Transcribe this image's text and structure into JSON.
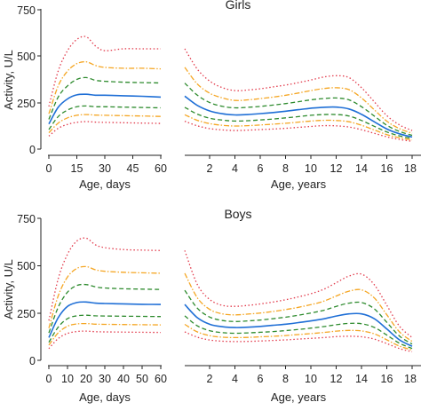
{
  "chart_data": [
    {
      "type": "line",
      "title": "Girls",
      "ylabel": "Activity, U/L",
      "ylim": [
        0,
        750
      ],
      "yticks": [
        "0",
        "250",
        "500",
        "750"
      ],
      "ytick_values": [
        0,
        250,
        500,
        750
      ],
      "grid": false,
      "panels": [
        {
          "xlabel": "Age, days",
          "xlim": [
            0,
            60
          ],
          "xticks": [
            "0",
            "15",
            "30",
            "45",
            "60"
          ],
          "xtick_values": [
            0,
            15,
            30,
            45,
            60
          ],
          "x": [
            0,
            5,
            10,
            15,
            20,
            25,
            30,
            40,
            50,
            60
          ],
          "series": [
            {
              "color": "#e23a4b",
              "dash": "dotted",
              "values": [
                230,
                420,
                530,
                590,
                605,
                555,
                530,
                540,
                540,
                540
              ]
            },
            {
              "color": "#f5a623",
              "dash": "dashdot",
              "values": [
                190,
                340,
                420,
                460,
                470,
                450,
                440,
                435,
                435,
                432
              ]
            },
            {
              "color": "#2e8b2e",
              "dash": "dashed",
              "values": [
                160,
                280,
                340,
                375,
                385,
                370,
                365,
                360,
                358,
                356
              ]
            },
            {
              "color": "#1f6fd6",
              "dash": "solid",
              "values": [
                135,
                225,
                270,
                292,
                295,
                290,
                290,
                287,
                284,
                280
              ]
            },
            {
              "color": "#2e8b2e",
              "dash": "dashed",
              "values": [
                105,
                175,
                210,
                228,
                232,
                228,
                228,
                226,
                224,
                222
              ]
            },
            {
              "color": "#f5a623",
              "dash": "dashdot",
              "values": [
                88,
                140,
                168,
                182,
                186,
                183,
                182,
                180,
                178,
                176
              ]
            },
            {
              "color": "#e23a4b",
              "dash": "dotted",
              "values": [
                70,
                112,
                133,
                144,
                148,
                145,
                144,
                142,
                140,
                138
              ]
            }
          ]
        },
        {
          "xlabel": "Age, years",
          "xlim": [
            0,
            18
          ],
          "xticks": [
            "2",
            "4",
            "6",
            "8",
            "10",
            "12",
            "14",
            "16",
            "18"
          ],
          "xtick_values": [
            2,
            4,
            6,
            8,
            10,
            12,
            14,
            16,
            18
          ],
          "x": [
            0,
            1,
            2,
            3,
            4,
            5,
            6,
            7,
            8,
            9,
            10,
            11,
            12,
            13,
            14,
            15,
            16,
            17,
            18
          ],
          "series": [
            {
              "color": "#e23a4b",
              "dash": "dotted",
              "values": [
                540,
                430,
                365,
                330,
                315,
                318,
                325,
                335,
                345,
                358,
                372,
                388,
                395,
                385,
                330,
                255,
                180,
                130,
                100
              ]
            },
            {
              "color": "#f5a623",
              "dash": "dashdot",
              "values": [
                440,
                350,
                300,
                275,
                262,
                265,
                272,
                280,
                290,
                302,
                315,
                326,
                330,
                320,
                275,
                212,
                150,
                110,
                85
              ]
            },
            {
              "color": "#2e8b2e",
              "dash": "dashed",
              "values": [
                355,
                290,
                250,
                230,
                222,
                225,
                230,
                237,
                245,
                255,
                265,
                272,
                275,
                265,
                228,
                178,
                128,
                95,
                74
              ]
            },
            {
              "color": "#1f6fd6",
              "dash": "solid",
              "values": [
                285,
                235,
                205,
                190,
                184,
                186,
                191,
                197,
                204,
                212,
                220,
                225,
                226,
                216,
                187,
                147,
                108,
                82,
                65
              ]
            },
            {
              "color": "#2e8b2e",
              "dash": "dashed",
              "values": [
                225,
                188,
                166,
                156,
                151,
                153,
                157,
                162,
                168,
                175,
                182,
                186,
                186,
                178,
                154,
                123,
                92,
                71,
                57
              ]
            },
            {
              "color": "#f5a623",
              "dash": "dashdot",
              "values": [
                185,
                155,
                137,
                128,
                124,
                126,
                130,
                134,
                139,
                145,
                151,
                155,
                154,
                147,
                128,
                103,
                78,
                61,
                49
              ]
            },
            {
              "color": "#e23a4b",
              "dash": "dotted",
              "values": [
                150,
                125,
                110,
                103,
                100,
                102,
                105,
                108,
                112,
                117,
                122,
                126,
                125,
                119,
                104,
                85,
                66,
                52,
                42
              ]
            }
          ]
        }
      ]
    },
    {
      "type": "line",
      "title": "Boys",
      "ylabel": "Activity, U/L",
      "ylim": [
        0,
        750
      ],
      "yticks": [
        "0",
        "250",
        "500",
        "750"
      ],
      "ytick_values": [
        0,
        250,
        500,
        750
      ],
      "grid": false,
      "panels": [
        {
          "xlabel": "Age, days",
          "xlim": [
            0,
            60
          ],
          "xticks": [
            "0",
            "10",
            "20",
            "30",
            "40",
            "50",
            "60"
          ],
          "xtick_values": [
            0,
            10,
            20,
            30,
            40,
            50,
            60
          ],
          "x": [
            0,
            5,
            10,
            15,
            20,
            25,
            30,
            40,
            50,
            60
          ],
          "series": [
            {
              "color": "#e23a4b",
              "dash": "dotted",
              "values": [
                210,
                430,
                560,
                630,
                645,
                610,
                595,
                585,
                582,
                580
              ]
            },
            {
              "color": "#f5a623",
              "dash": "dashdot",
              "values": [
                170,
                340,
                440,
                485,
                495,
                478,
                470,
                465,
                462,
                460
              ]
            },
            {
              "color": "#2e8b2e",
              "dash": "dashed",
              "values": [
                145,
                280,
                360,
                395,
                400,
                388,
                382,
                378,
                376,
                374
              ]
            },
            {
              "color": "#1f6fd6",
              "dash": "solid",
              "values": [
                120,
                225,
                285,
                305,
                308,
                302,
                300,
                298,
                296,
                295
              ]
            },
            {
              "color": "#2e8b2e",
              "dash": "dashed",
              "values": [
                95,
                175,
                220,
                235,
                238,
                235,
                234,
                233,
                232,
                231
              ]
            },
            {
              "color": "#f5a623",
              "dash": "dashdot",
              "values": [
                80,
                145,
                180,
                192,
                194,
                191,
                190,
                189,
                188,
                187
              ]
            },
            {
              "color": "#e23a4b",
              "dash": "dotted",
              "values": [
                62,
                115,
                142,
                152,
                154,
                151,
                150,
                149,
                148,
                147
              ]
            }
          ]
        },
        {
          "xlabel": "Age, years",
          "xlim": [
            0,
            18
          ],
          "xticks": [
            "2",
            "4",
            "6",
            "8",
            "10",
            "12",
            "14",
            "16",
            "18"
          ],
          "xtick_values": [
            2,
            4,
            6,
            8,
            10,
            12,
            14,
            16,
            18
          ],
          "x": [
            0,
            1,
            2,
            3,
            4,
            5,
            6,
            7,
            8,
            9,
            10,
            11,
            12,
            13,
            14,
            15,
            16,
            17,
            18
          ],
          "series": [
            {
              "color": "#e23a4b",
              "dash": "dotted",
              "values": [
                580,
                400,
                320,
                290,
                285,
                290,
                298,
                308,
                320,
                335,
                352,
                375,
                410,
                445,
                455,
                400,
                290,
                180,
                120
              ]
            },
            {
              "color": "#f5a623",
              "dash": "dashdot",
              "values": [
                460,
                330,
                268,
                245,
                240,
                244,
                250,
                258,
                268,
                280,
                294,
                312,
                340,
                365,
                372,
                330,
                240,
                150,
                100
              ]
            },
            {
              "color": "#2e8b2e",
              "dash": "dashed",
              "values": [
                370,
                275,
                228,
                210,
                205,
                208,
                213,
                220,
                228,
                238,
                250,
                264,
                285,
                302,
                305,
                272,
                200,
                128,
                86
              ]
            },
            {
              "color": "#1f6fd6",
              "dash": "solid",
              "values": [
                295,
                225,
                190,
                177,
                173,
                175,
                179,
                185,
                191,
                199,
                208,
                219,
                234,
                245,
                245,
                220,
                165,
                108,
                74
              ]
            },
            {
              "color": "#2e8b2e",
              "dash": "dashed",
              "values": [
                235,
                182,
                156,
                146,
                143,
                145,
                148,
                152,
                157,
                163,
                170,
                178,
                188,
                195,
                193,
                174,
                133,
                90,
                63
              ]
            },
            {
              "color": "#f5a623",
              "dash": "dashdot",
              "values": [
                190,
                150,
                130,
                122,
                120,
                121,
                124,
                127,
                131,
                136,
                141,
                147,
                154,
                158,
                155,
                140,
                108,
                75,
                54
              ]
            },
            {
              "color": "#e23a4b",
              "dash": "dotted",
              "values": [
                150,
                122,
                107,
                101,
                99,
                100,
                102,
                105,
                108,
                112,
                116,
                120,
                125,
                127,
                124,
                112,
                88,
                62,
                45
              ]
            }
          ]
        }
      ]
    }
  ]
}
